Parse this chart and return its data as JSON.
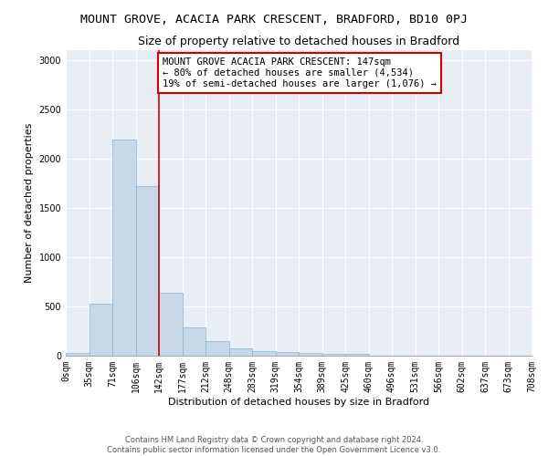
{
  "title": "MOUNT GROVE, ACACIA PARK CRESCENT, BRADFORD, BD10 0PJ",
  "subtitle": "Size of property relative to detached houses in Bradford",
  "xlabel": "Distribution of detached houses by size in Bradford",
  "ylabel": "Number of detached properties",
  "bar_values": [
    30,
    525,
    2190,
    1720,
    635,
    285,
    150,
    70,
    45,
    35,
    30,
    20,
    20,
    0,
    0,
    0,
    0,
    0,
    0,
    0
  ],
  "bar_labels": [
    "0sqm",
    "35sqm",
    "71sqm",
    "106sqm",
    "142sqm",
    "177sqm",
    "212sqm",
    "248sqm",
    "283sqm",
    "319sqm",
    "354sqm",
    "389sqm",
    "425sqm",
    "460sqm",
    "496sqm",
    "531sqm",
    "566sqm",
    "602sqm",
    "637sqm",
    "673sqm",
    "708sqm"
  ],
  "bar_color": "#c8d8e8",
  "bar_edge_color": "#8ab4cc",
  "vline_x": 4,
  "vline_color": "#cc0000",
  "annotation_text": "MOUNT GROVE ACACIA PARK CRESCENT: 147sqm\n← 80% of detached houses are smaller (4,534)\n19% of semi-detached houses are larger (1,076) →",
  "annotation_box_color": "white",
  "annotation_box_edge": "#cc0000",
  "ylim": [
    0,
    3100
  ],
  "yticks": [
    0,
    500,
    1000,
    1500,
    2000,
    2500,
    3000
  ],
  "bg_color": "#e8eef4",
  "footer_line1": "Contains HM Land Registry data © Crown copyright and database right 2024.",
  "footer_line2": "Contains public sector information licensed under the Open Government Licence v3.0.",
  "title_fontsize": 9.5,
  "subtitle_fontsize": 9,
  "axis_label_fontsize": 8,
  "tick_fontsize": 7,
  "footer_fontsize": 6,
  "annotation_fontsize": 7.5
}
